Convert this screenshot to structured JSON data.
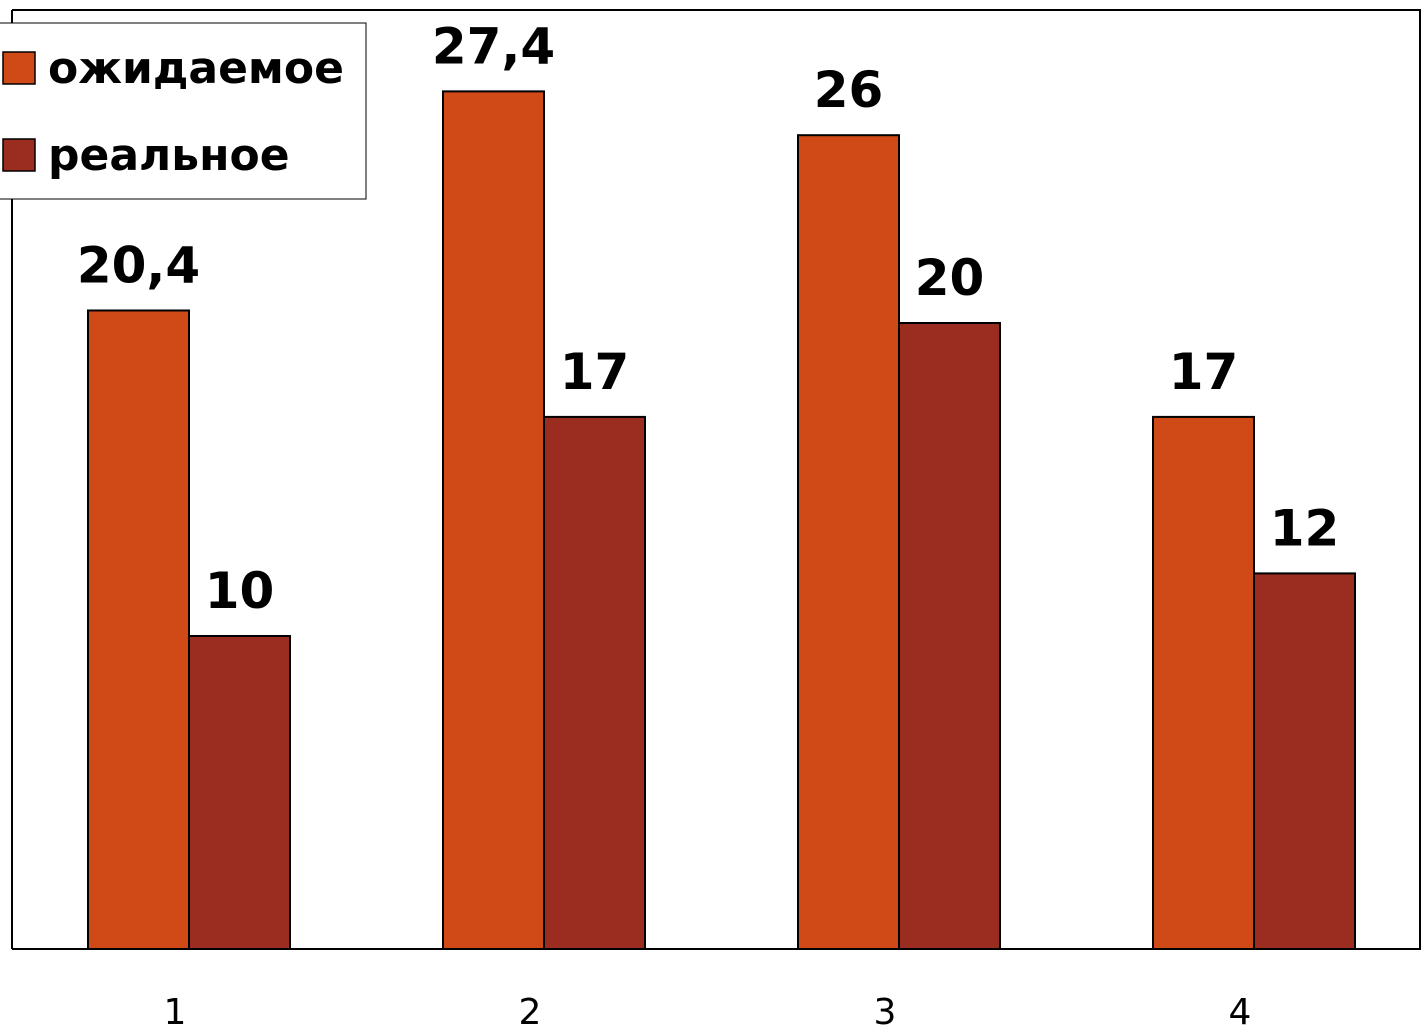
{
  "chart_data": {
    "type": "bar",
    "categories": [
      "1",
      "2",
      "3",
      "4"
    ],
    "series": [
      {
        "name": "ожидаемое",
        "values": [
          20.4,
          27.4,
          26,
          17
        ],
        "value_labels": [
          "20,4",
          "27,4",
          "26",
          "17"
        ],
        "color": "#D04A17"
      },
      {
        "name": "реальное",
        "values": [
          10,
          17,
          20,
          12
        ],
        "value_labels": [
          "10",
          "17",
          "20",
          "12"
        ],
        "color": "#9B2C20"
      }
    ],
    "ylim": [
      0,
      30
    ],
    "grid": false,
    "legend_position": "top-left",
    "axis_color": "#000000"
  }
}
